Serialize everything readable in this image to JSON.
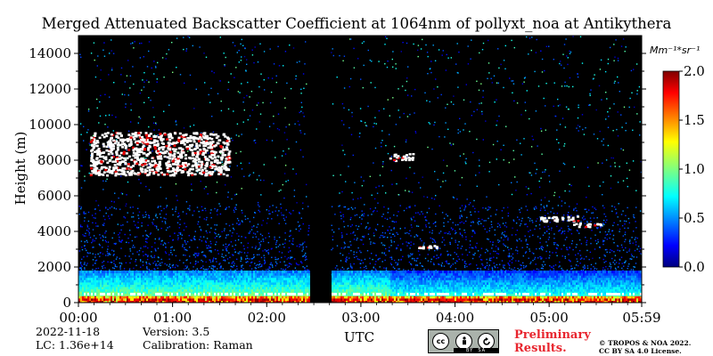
{
  "chart_data": {
    "type": "heatmap",
    "title": "Merged Attenuated Backscatter Coefficient at 1064nm of pollyxt_noa at Antikythera",
    "xlabel": "UTC",
    "ylabel": "Height (m)",
    "x_tick_labels": [
      "00:00",
      "01:00",
      "02:00",
      "03:00",
      "04:00",
      "05:00",
      "05:59"
    ],
    "x_range_hours": [
      0,
      5.983
    ],
    "ylim": [
      0,
      15000
    ],
    "y_ticks": [
      0,
      2000,
      4000,
      6000,
      8000,
      10000,
      12000,
      14000
    ],
    "colorbar": {
      "label": "Mm⁻¹*sr⁻¹",
      "range": [
        0.0,
        2.0
      ],
      "ticks": [
        "0.0",
        "0.5",
        "1.0",
        "1.5",
        "2.0"
      ],
      "colormap": "jet"
    },
    "data_gap_hours": [
      2.45,
      2.68
    ],
    "features": [
      {
        "kind": "cloud",
        "start_hour": 0.12,
        "end_hour": 1.6,
        "bottom_m": 7200,
        "top_m": 9600
      },
      {
        "kind": "cloud",
        "start_hour": 3.3,
        "end_hour": 3.55,
        "bottom_m": 8000,
        "top_m": 8400
      },
      {
        "kind": "cloud",
        "start_hour": 4.9,
        "end_hour": 5.3,
        "bottom_m": 4600,
        "top_m": 4900
      },
      {
        "kind": "cloud",
        "start_hour": 5.25,
        "end_hour": 5.55,
        "bottom_m": 4300,
        "top_m": 4500
      },
      {
        "kind": "cloud",
        "start_hour": 3.6,
        "end_hour": 3.8,
        "bottom_m": 3100,
        "top_m": 3250
      },
      {
        "kind": "boundary_layer",
        "start_hour": 0,
        "end_hour": 5.983,
        "top_m": 1800
      }
    ]
  },
  "meta": {
    "date": "2022-11-18",
    "lc": "LC: 1.36e+14",
    "version": "Version: 3.5",
    "calibration": "Calibration: Raman"
  },
  "license": {
    "preliminary_line1": "Preliminary",
    "preliminary_line2": "Results.",
    "copyright_line1": "© TROPOS & NOA 2022.",
    "copyright_line2": "CC BY SA 4.0 License.",
    "badge_cc": "cc",
    "badge_by": "BY",
    "badge_sa": "SA"
  }
}
